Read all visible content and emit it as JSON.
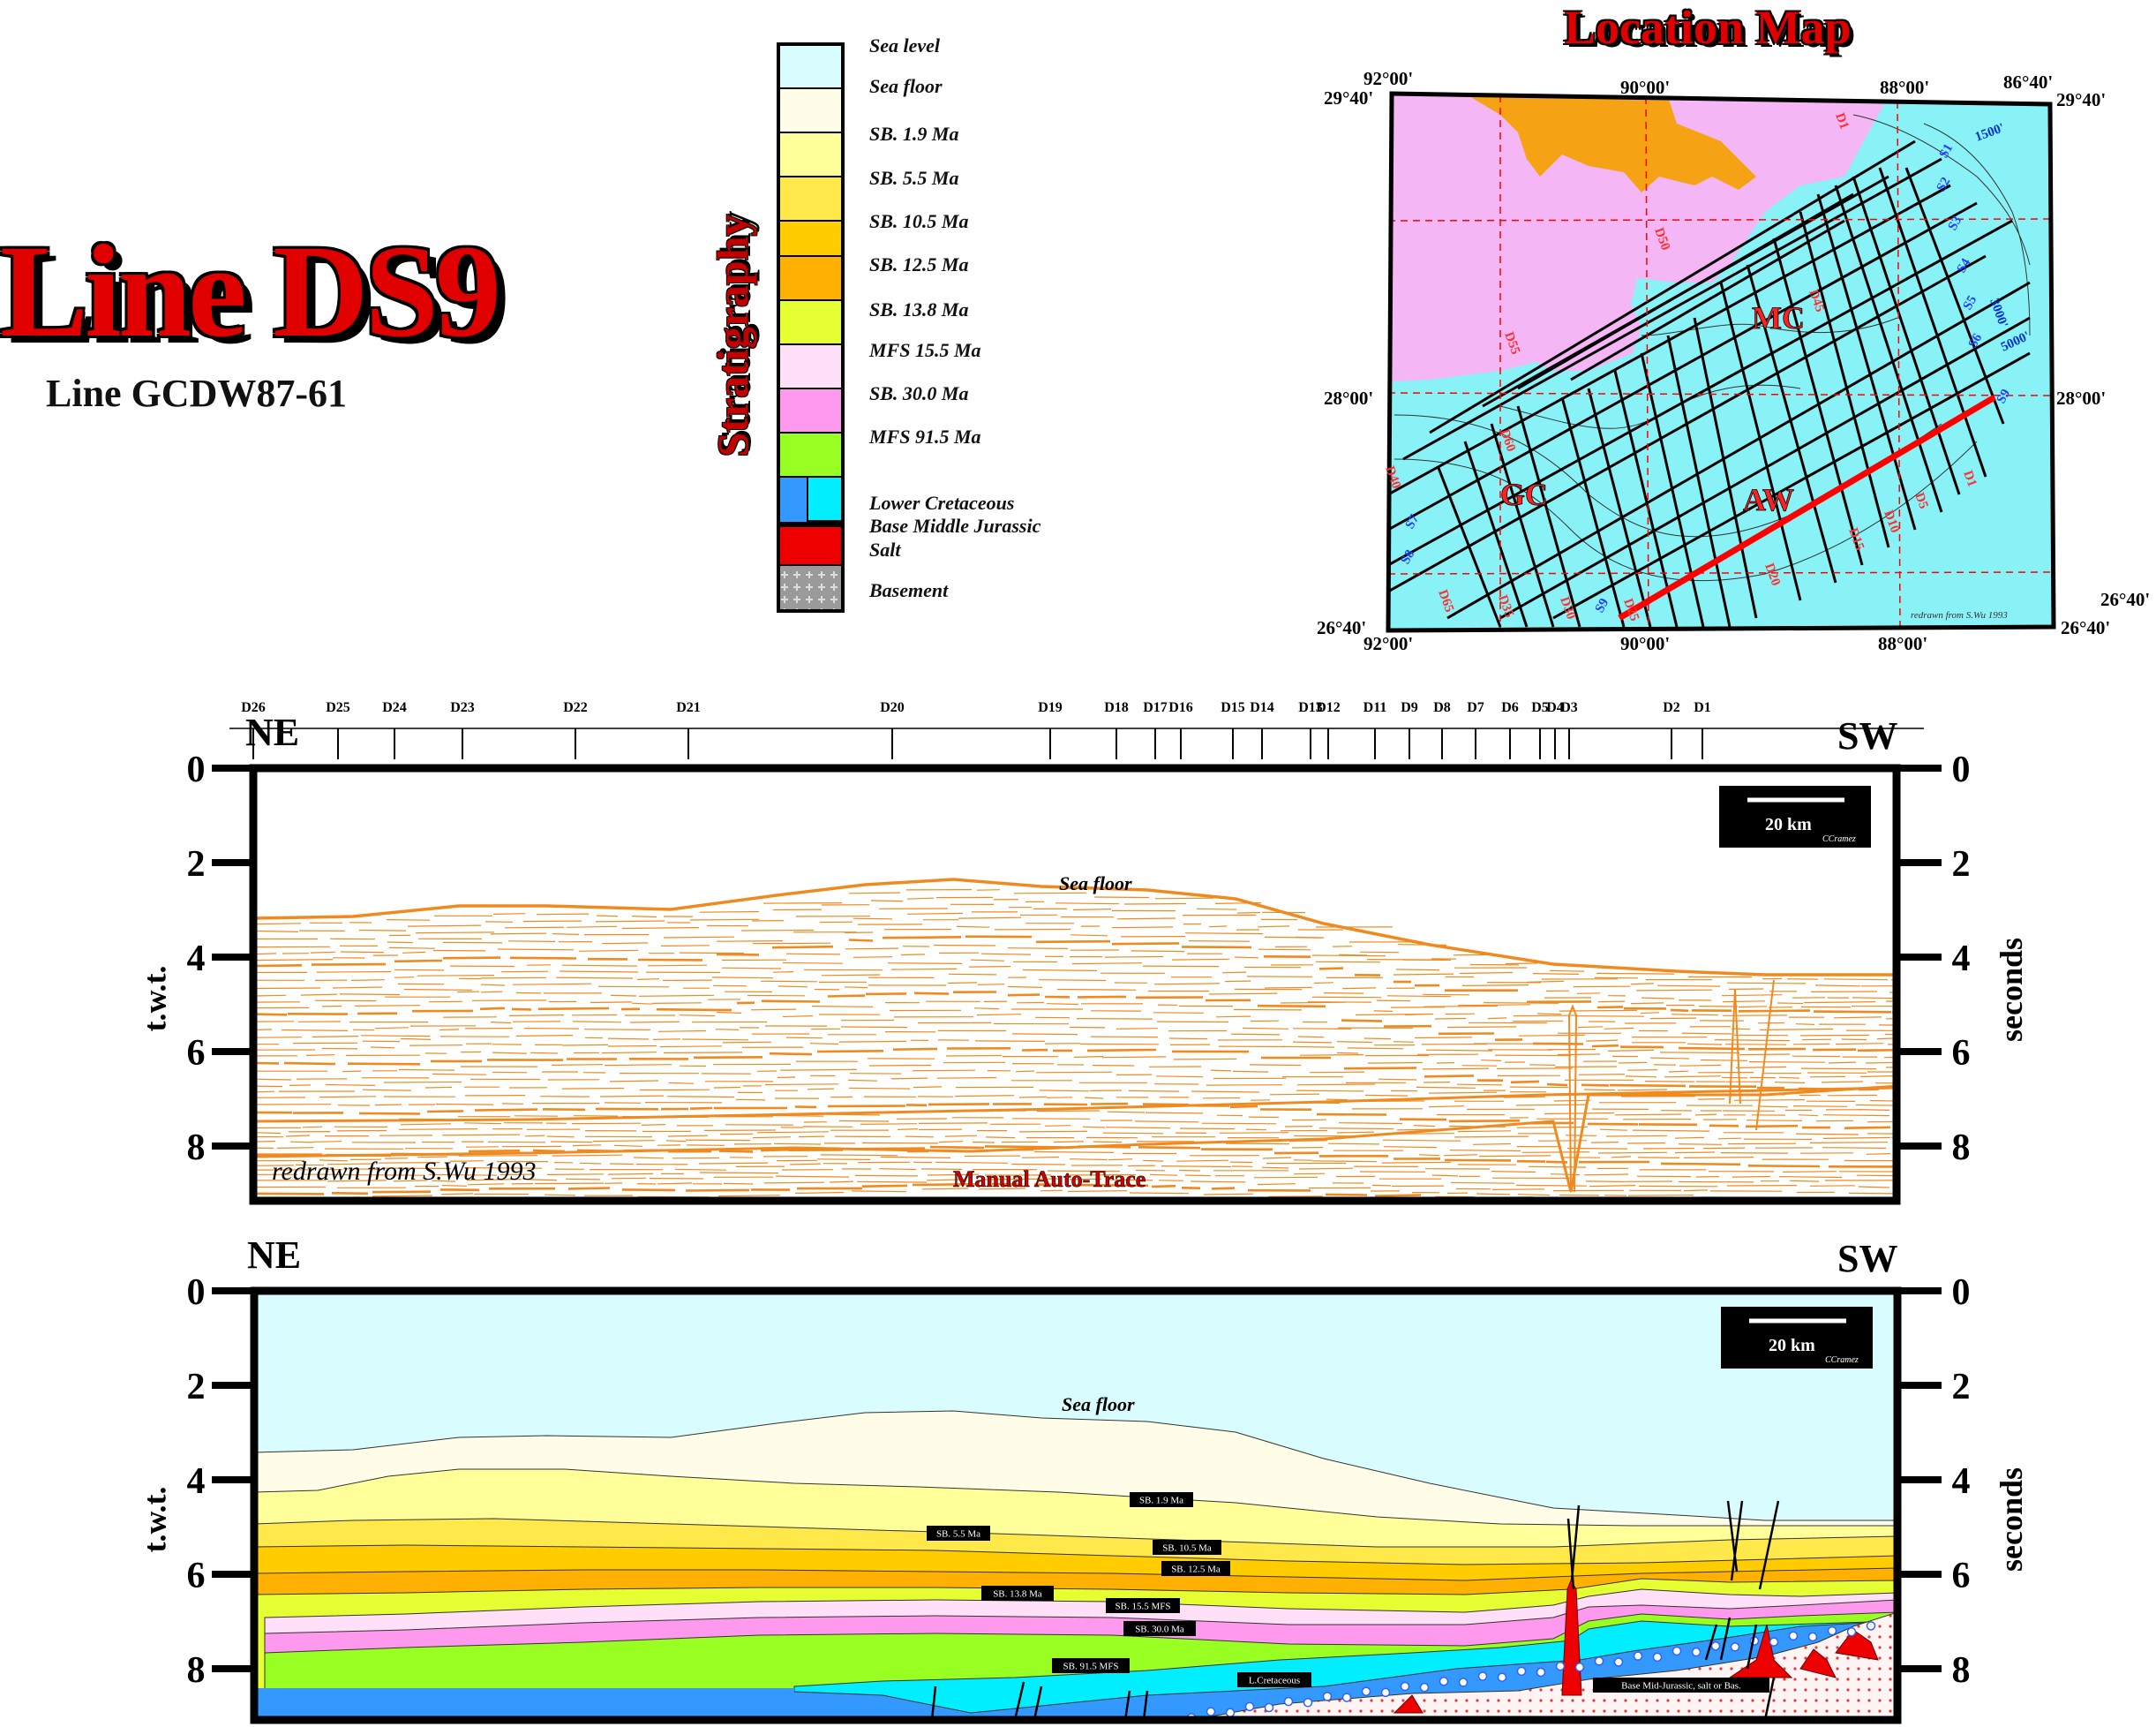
{
  "title": "Line DS9",
  "subtitle": "Line GCDW87-61",
  "stratigraphy": {
    "heading": "Stratigraphy",
    "items": [
      {
        "label": "Sea level",
        "color": "#d9fcff"
      },
      {
        "label": "Sea floor",
        "color": "#fffce8"
      },
      {
        "label": "SB. 1.9 Ma",
        "color": "#ffff99"
      },
      {
        "label": "SB. 5.5 Ma",
        "color": "#ffe84a"
      },
      {
        "label": "SB. 10.5 Ma",
        "color": "#ffcc00"
      },
      {
        "label": "SB. 12.5 Ma",
        "color": "#ffb000"
      },
      {
        "label": "SB. 13.8 Ma",
        "color": "#e6ff33"
      },
      {
        "label": "MFS 15.5 Ma",
        "color": "#ffe0f8"
      },
      {
        "label": "SB. 30.0 Ma",
        "color": "#ff99ee"
      },
      {
        "label": "MFS 91.5 Ma",
        "color": "#99ff22"
      },
      {
        "label": "Lower Cretaceous",
        "color": "#00eeff"
      },
      {
        "label": "Base Middle Jurassic",
        "color": "#3399ff"
      },
      {
        "label": "Salt",
        "color": "#ee0000"
      },
      {
        "label": "Basement",
        "color": "#9a9a9a"
      }
    ]
  },
  "location_map": {
    "heading": "Location Map",
    "coords": {
      "tl_lon": "92°00'",
      "tl_lat": "29°40'",
      "top_mid": "90°00'",
      "top_right": "88°00'",
      "tr_lon": "86°40'",
      "tr_lat": "29°40'",
      "left_mid": "28°00'",
      "right_mid": "28°00'",
      "bl_lat": "26°40'",
      "bl_lon": "92°00'",
      "bottom_mid": "90°00'",
      "bottom_right": "88°00'",
      "br_lat": "26°40'",
      "br_lat2": "26°40'"
    },
    "region_labels": [
      "MC",
      "GC",
      "AW"
    ],
    "contours": [
      "1500'",
      "3000'",
      "5000'"
    ],
    "credit": "redrawn from S.Wu 1993",
    "line_labels_red": [
      "D1",
      "D5",
      "D10",
      "D15",
      "D20",
      "D25",
      "D30",
      "D35",
      "D40",
      "D45",
      "D50",
      "D55",
      "D60",
      "D65"
    ],
    "line_labels_blue": [
      "S1",
      "S2",
      "S3",
      "S4",
      "S5",
      "S6",
      "S7",
      "S8",
      "S9"
    ],
    "colors": {
      "land": "#f4b6f4",
      "sea": "#88f2f7",
      "delta": "#f5a314",
      "highlight": "#ff0000"
    }
  },
  "section": {
    "top_labels": [
      "D26",
      "D25",
      "D24",
      "D23",
      "D22",
      "D21",
      "D20",
      "D19",
      "D18",
      "D17",
      "D16",
      "D15",
      "D14",
      "D13",
      "D12",
      "D11",
      "D9",
      "D8",
      "D7",
      "D6",
      "D5",
      "D4",
      "D3",
      "D2",
      "D1"
    ],
    "left_dir": "NE",
    "right_dir": "SW",
    "yticks": [
      "0",
      "2",
      "4",
      "6",
      "8"
    ],
    "left_axis": "t.w.t.",
    "right_axis": "seconds",
    "scale": "20 km",
    "scale_credit": "CCramez",
    "sea_floor": "Sea floor",
    "credit": "redrawn from S.Wu 1993",
    "method": "Manual Auto-Trace",
    "trace_color": "#f08a1e"
  },
  "interpretation": {
    "left_dir": "NE",
    "right_dir": "SW",
    "yticks": [
      "0",
      "2",
      "4",
      "6",
      "8"
    ],
    "left_axis": "t.w.t.",
    "right_axis": "seconds",
    "scale": "20 km",
    "scale_credit": "CCramez",
    "sea_floor": "Sea floor",
    "horizon_labels": [
      "SB. 1.9 Ma",
      "SB. 5.5 Ma",
      "SB. 10.5 Ma",
      "SB. 12.5 Ma",
      "SB. 13.8 Ma",
      "SB. 15.5 MFS",
      "SB. 30.0 Ma",
      "SB. 91.5 MFS",
      "L.Cretaceous",
      "Base Mid-Jurassic, salt or Bas."
    ]
  }
}
